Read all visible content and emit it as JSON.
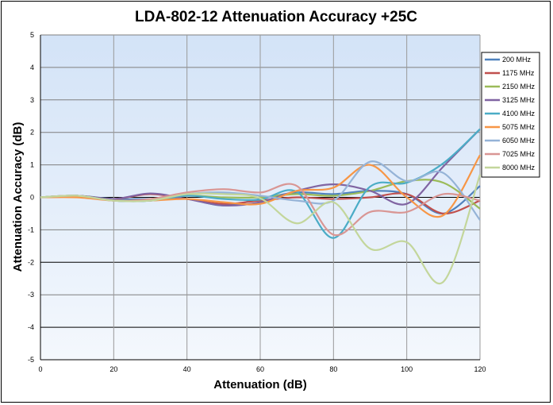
{
  "chart_data": {
    "type": "line",
    "title": "LDA-802-12 Attenuation Accuracy +25C",
    "xlabel": "Attenuation (dB)",
    "ylabel": "Attenuation Accuracy (dB)",
    "xlim": [
      0,
      120
    ],
    "ylim": [
      -5,
      5
    ],
    "xticks": [
      "0",
      "20",
      "40",
      "60",
      "80",
      "100",
      "120"
    ],
    "yticks": [
      "5",
      "4",
      "3",
      "2",
      "1",
      "0",
      "-1",
      "-2",
      "-3",
      "-4",
      "-5"
    ],
    "grid": true,
    "legend_position": "right",
    "x": [
      0,
      10,
      20,
      30,
      40,
      50,
      60,
      70,
      80,
      90,
      100,
      110,
      120
    ],
    "series": [
      {
        "name": "200 MHz",
        "color": "#4F81BD",
        "values": [
          0,
          0.05,
          -0.05,
          -0.05,
          -0.05,
          -0.25,
          -0.05,
          0.15,
          0.1,
          0.2,
          0.1,
          -0.5,
          0.35
        ]
      },
      {
        "name": "1175 MHz",
        "color": "#C0504D",
        "values": [
          0,
          0.05,
          -0.05,
          0.1,
          -0.05,
          -0.2,
          -0.1,
          0.0,
          -0.05,
          0.0,
          0.1,
          -0.5,
          -0.1
        ]
      },
      {
        "name": "2150 MHz",
        "color": "#9BBB59",
        "values": [
          0,
          0.05,
          -0.1,
          -0.1,
          0.05,
          0.0,
          0.0,
          0.1,
          0.05,
          0.2,
          0.5,
          0.45,
          -0.35
        ]
      },
      {
        "name": "3125 MHz",
        "color": "#8064A2",
        "values": [
          0,
          0.05,
          -0.05,
          0.12,
          -0.05,
          -0.25,
          -0.15,
          0.2,
          0.4,
          0.2,
          -0.2,
          0.95,
          2.1
        ]
      },
      {
        "name": "4100 MHz",
        "color": "#4BACC6",
        "values": [
          0,
          0.05,
          -0.1,
          -0.1,
          0.05,
          -0.05,
          -0.07,
          0.17,
          -1.25,
          0.33,
          0.45,
          1.05,
          2.1
        ]
      },
      {
        "name": "5075 MHz",
        "color": "#F79646",
        "values": [
          0,
          0.0,
          -0.1,
          -0.1,
          -0.05,
          -0.15,
          -0.2,
          0.2,
          0.3,
          1.0,
          0.0,
          -0.55,
          1.3
        ]
      },
      {
        "name": "6050 MHz",
        "color": "#95B3D7",
        "values": [
          0,
          0.05,
          -0.1,
          -0.1,
          0.1,
          0.15,
          0.05,
          -0.1,
          -0.1,
          1.1,
          0.5,
          0.75,
          -0.7
        ]
      },
      {
        "name": "7025 MHz",
        "color": "#D99694",
        "values": [
          0,
          0.05,
          -0.1,
          -0.05,
          0.15,
          0.25,
          0.15,
          0.35,
          -1.15,
          -0.45,
          -0.45,
          0.1,
          -0.1
        ]
      },
      {
        "name": "8000 MHz",
        "color": "#C3D69B",
        "values": [
          0,
          0.05,
          -0.1,
          -0.1,
          0.1,
          0.1,
          -0.03,
          -0.8,
          -0.15,
          -1.58,
          -1.38,
          -2.6,
          0.7
        ]
      }
    ]
  }
}
